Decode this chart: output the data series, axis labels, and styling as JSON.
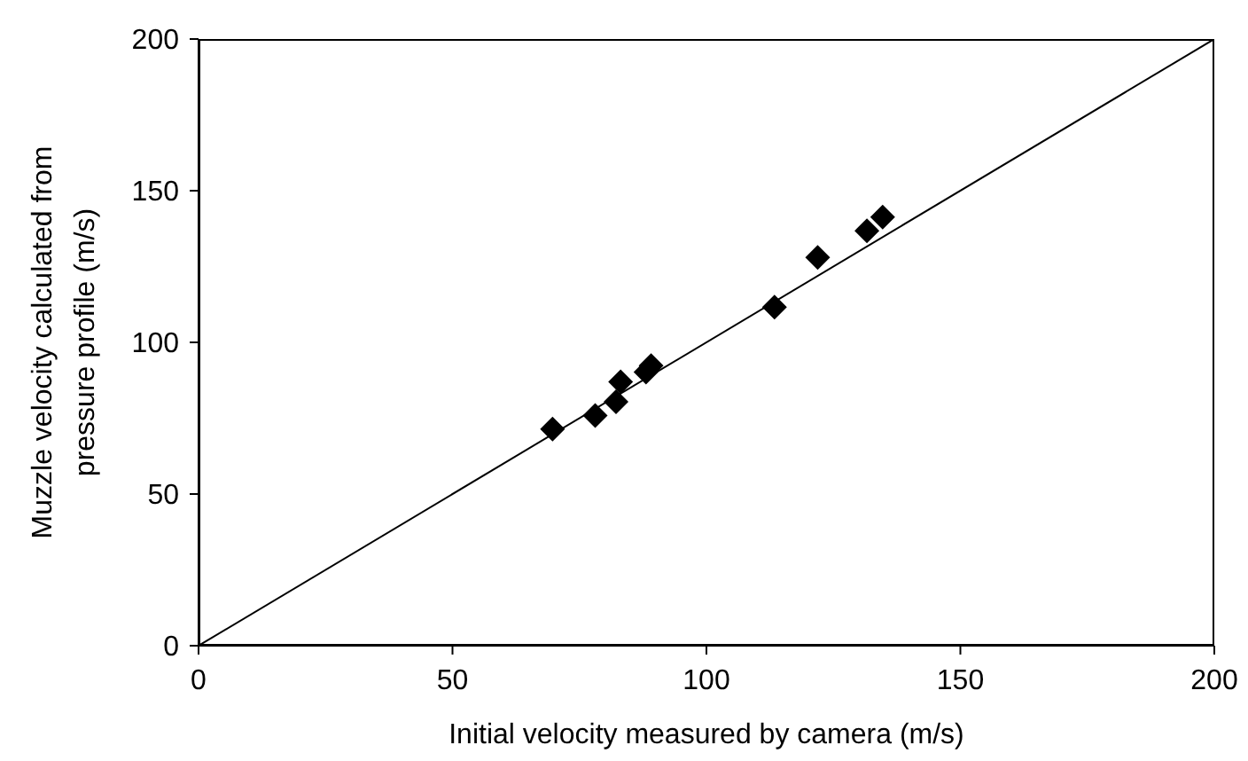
{
  "chart_data": {
    "type": "scatter",
    "xlabel": "Initial velocity measured by camera (m/s)",
    "ylabel": "Muzzle velocity calculated from pressure profile (m/s)",
    "xlim": [
      0,
      200
    ],
    "ylim": [
      0,
      200
    ],
    "xticks": [
      0,
      50,
      100,
      150,
      200
    ],
    "yticks": [
      0,
      50,
      100,
      150,
      200
    ],
    "grid": false,
    "marker": "diamond",
    "series": [
      {
        "color": "#000000",
        "x": [
          69.7,
          78.1,
          82.2,
          83.1,
          88.1,
          89.1,
          113.4,
          121.9,
          131.6,
          134.7
        ],
        "values": [
          71.4,
          75.9,
          80.4,
          87.0,
          90.2,
          92.3,
          111.6,
          128.0,
          136.8,
          141.3
        ]
      },
      {
        "type": "line",
        "color": "#000000",
        "marker": "none",
        "line_style": "solid",
        "x": [
          0,
          200
        ],
        "values": [
          0,
          200
        ]
      }
    ]
  }
}
